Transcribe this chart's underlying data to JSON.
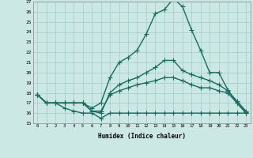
{
  "xlabel": "Humidex (Indice chaleur)",
  "ylabel": "",
  "background_color": "#cce8e4",
  "grid_color": "#aacfcb",
  "line_color": "#1a6b60",
  "x_values": [
    0,
    1,
    2,
    3,
    4,
    5,
    6,
    7,
    8,
    9,
    10,
    11,
    12,
    13,
    14,
    15,
    16,
    17,
    18,
    19,
    20,
    21,
    22,
    23
  ],
  "series": [
    [
      17.8,
      17.0,
      17.0,
      17.0,
      17.0,
      17.0,
      16.5,
      17.0,
      19.5,
      21.0,
      21.5,
      22.2,
      23.8,
      25.8,
      26.2,
      27.3,
      26.5,
      24.2,
      22.2,
      20.0,
      20.0,
      18.3,
      17.0,
      16.1
    ],
    [
      17.8,
      17.0,
      17.0,
      17.0,
      17.0,
      17.0,
      16.2,
      16.0,
      18.0,
      18.8,
      19.2,
      19.5,
      20.0,
      20.5,
      21.2,
      21.2,
      20.2,
      19.8,
      19.5,
      19.2,
      18.8,
      18.2,
      17.2,
      16.2
    ],
    [
      17.8,
      17.0,
      17.0,
      17.0,
      17.0,
      17.0,
      16.2,
      16.2,
      17.8,
      18.2,
      18.5,
      18.8,
      19.0,
      19.2,
      19.5,
      19.5,
      19.2,
      18.8,
      18.5,
      18.5,
      18.2,
      18.0,
      17.0,
      16.0
    ],
    [
      17.8,
      17.0,
      17.0,
      16.5,
      16.2,
      16.0,
      16.0,
      15.5,
      16.0,
      16.0,
      16.0,
      16.0,
      16.0,
      16.0,
      16.0,
      16.0,
      16.0,
      16.0,
      16.0,
      16.0,
      16.0,
      16.0,
      16.0,
      16.0
    ]
  ],
  "ylim": [
    15,
    27
  ],
  "xlim": [
    -0.5,
    23.5
  ],
  "yticks": [
    15,
    16,
    17,
    18,
    19,
    20,
    21,
    22,
    23,
    24,
    25,
    26,
    27
  ],
  "xticks": [
    0,
    1,
    2,
    3,
    4,
    5,
    6,
    7,
    8,
    9,
    10,
    11,
    12,
    13,
    14,
    15,
    16,
    17,
    18,
    19,
    20,
    21,
    22,
    23
  ],
  "xtick_labels": [
    "0",
    "1",
    "2",
    "3",
    "4",
    "5",
    "6",
    "7",
    "8",
    "9",
    "10",
    "11",
    "12",
    "13",
    "14",
    "15",
    "16",
    "17",
    "18",
    "19",
    "20",
    "21",
    "22",
    "23"
  ],
  "marker": "+",
  "linewidth": 1.0,
  "markersize": 4
}
